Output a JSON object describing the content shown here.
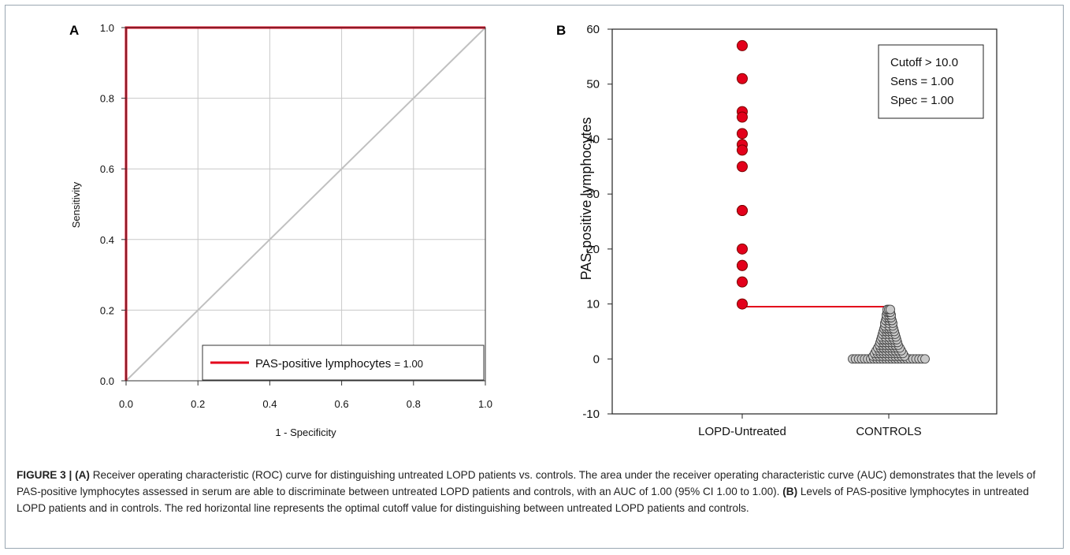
{
  "chart_data": [
    {
      "panel": "A",
      "type": "line",
      "xlabel": "1 - Specificity",
      "ylabel": "Sensitivity",
      "xlim": [
        0,
        1
      ],
      "ylim": [
        0,
        1
      ],
      "xticks": [
        "0.0",
        "0.2",
        "0.4",
        "0.6",
        "0.8",
        "1.0"
      ],
      "yticks": [
        "0.0",
        "0.2",
        "0.4",
        "0.6",
        "0.8",
        "1.0"
      ],
      "grid": true,
      "legend_position": "bottom-right",
      "series": [
        {
          "name": "PAS-positive lymphocytes = 1.00",
          "color": "#e3001b",
          "x": [
            0,
            0,
            1
          ],
          "y": [
            0,
            1,
            1
          ]
        },
        {
          "color": "#c0c0c0",
          "x": [
            0,
            1
          ],
          "y": [
            0,
            1
          ]
        }
      ],
      "legend_label": "PAS-positive lymphocytes",
      "legend_value": "= 1.00"
    },
    {
      "panel": "B",
      "type": "scatter",
      "ylabel": "PAS-positive lymphocytes",
      "ylim": [
        -10,
        60
      ],
      "yticks": [
        "-10",
        "0",
        "10",
        "20",
        "30",
        "40",
        "50",
        "60"
      ],
      "categories": [
        "LOPD-Untreated",
        "CONTROLS"
      ],
      "series": [
        {
          "category": "LOPD-Untreated",
          "color": "#e3001b",
          "values": [
            57,
            51,
            45,
            44,
            41,
            39,
            38,
            35,
            27,
            27,
            20,
            17,
            17,
            14,
            10
          ]
        },
        {
          "category": "CONTROLS",
          "color": "#c8c8c8",
          "summary": "dense beeswarm of control values from 0 to 9, most at 0"
        }
      ],
      "cutoff_line": {
        "y": 9.5,
        "color": "#e3001b"
      },
      "annotation": [
        "Cutoff > 10.0",
        "Sens = 1.00",
        "Spec = 1.00"
      ]
    }
  ],
  "caption": {
    "label": "FIGURE 3 |",
    "a_tag": "(A)",
    "a_text": "Receiver operating characteristic (ROC) curve for distinguishing untreated LOPD patients vs. controls. The area under the receiver operating characteristic curve (AUC) demonstrates that the levels of PAS-positive lymphocytes assessed in serum are able to discriminate between untreated LOPD patients and controls, with an AUC of 1.00 (95% CI 1.00 to 1.00).",
    "b_tag": "(B)",
    "b_text": "Levels of PAS-positive lymphocytes in untreated LOPD patients and in controls. The red horizontal line represents the optimal cutoff value for distinguishing between untreated LOPD patients and controls."
  }
}
